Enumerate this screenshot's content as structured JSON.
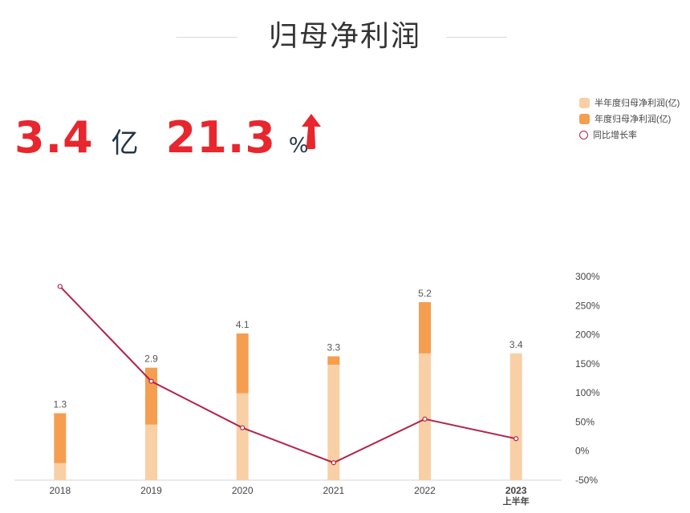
{
  "title": "归母净利润",
  "kpi": {
    "value": "3.4",
    "value_unit": "亿",
    "growth": "21.3",
    "growth_unit": "%",
    "trend": "up-arrow-icon"
  },
  "colors": {
    "half_year": "#f9cfa6",
    "annual": "#f59e50",
    "line": "#b3244a",
    "accent": "#e8262d"
  },
  "chart_data": {
    "type": "bar",
    "categories": [
      "2018",
      "2019",
      "2020",
      "2021",
      "2022",
      "2023\n上半年"
    ],
    "series": [
      {
        "name": "半年度归母净利润(亿)",
        "type": "bar",
        "values": [
          -0.45,
          0.9,
          2.0,
          3.0,
          3.4,
          3.4
        ]
      },
      {
        "name": "年度归母净利润(亿)",
        "type": "bar",
        "values": [
          1.3,
          2.9,
          4.1,
          3.3,
          5.2,
          null
        ]
      },
      {
        "name": "同比增长率",
        "type": "line",
        "axis": "right",
        "values": [
          283,
          120,
          40,
          -20,
          55,
          21.3
        ]
      }
    ],
    "data_labels": [
      "1.3",
      "2.9",
      "4.1",
      "3.3",
      "5.2",
      "3.4"
    ],
    "right_axis": {
      "ticks": [
        "300%",
        "250%",
        "200%",
        "150%",
        "100%",
        "50%",
        "0%",
        "-50%"
      ],
      "min": -50,
      "max": 300
    },
    "left_axis_range": [
      -1.05,
      6.1
    ],
    "legend_position": "top-right"
  }
}
